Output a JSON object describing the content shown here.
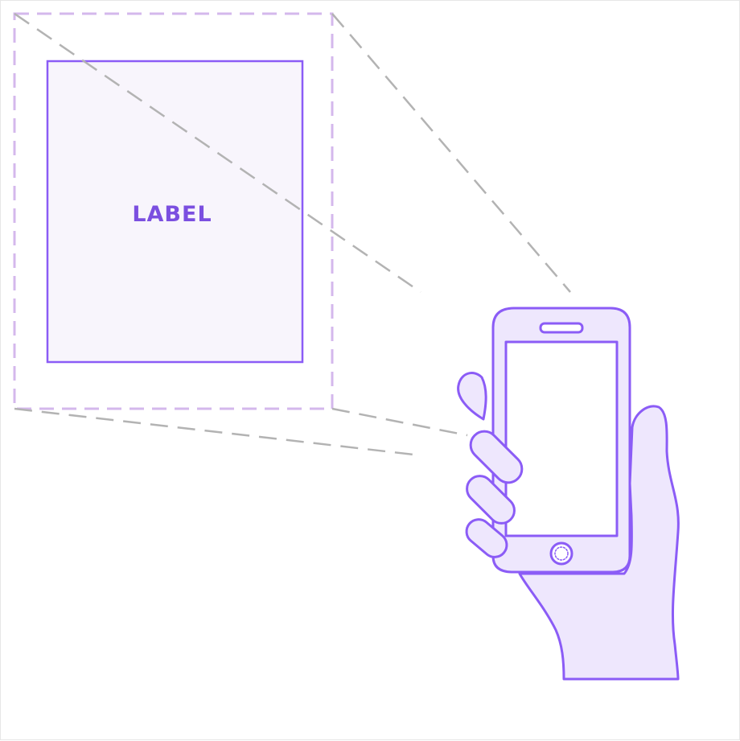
{
  "label": {
    "text": "LABEL"
  },
  "colors": {
    "accent": "#8b5cf6",
    "label_text": "#7b4fe0",
    "label_fill": "#f8f5fc",
    "frame_dashed": "#d4b8ec",
    "sight_lines": "#b3b3b3",
    "hand_fill": "#eee7fd",
    "hand_stroke": "#8b5cf6",
    "screen_fill": "#ffffff",
    "background": "#ffffff"
  },
  "icons": {
    "device": "smartphone-icon",
    "hand": "hand-holding-phone-icon",
    "home_button": "home-button-icon"
  }
}
